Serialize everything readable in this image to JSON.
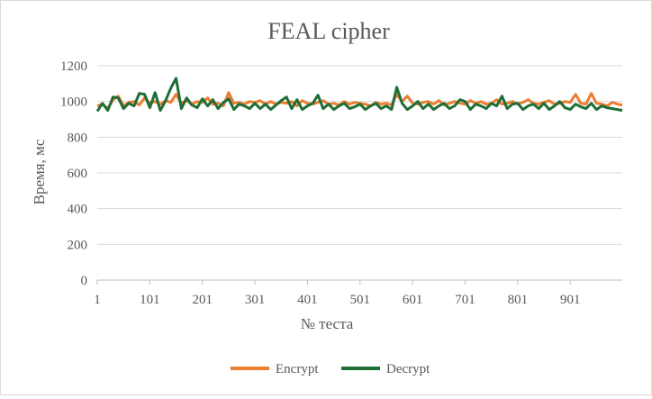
{
  "chart_data": {
    "type": "line",
    "title": "FEAL cipher",
    "xlabel": "№ теста",
    "ylabel": "Время, мс",
    "xlim": [
      1,
      1000
    ],
    "ylim": [
      0,
      1200
    ],
    "y_ticks": [
      0,
      200,
      400,
      600,
      800,
      1000,
      1200
    ],
    "x_ticks": [
      1,
      101,
      201,
      301,
      401,
      501,
      601,
      701,
      801,
      901
    ],
    "grid": "horizontal",
    "legend_position": "bottom",
    "series": [
      {
        "name": "Encrypt",
        "color": "#ED7D31",
        "x": [
          1,
          11,
          21,
          31,
          41,
          51,
          61,
          71,
          81,
          91,
          101,
          111,
          121,
          131,
          141,
          151,
          161,
          171,
          181,
          191,
          201,
          211,
          221,
          231,
          241,
          251,
          261,
          271,
          281,
          291,
          301,
          311,
          321,
          331,
          341,
          351,
          361,
          371,
          381,
          391,
          401,
          411,
          421,
          431,
          441,
          451,
          461,
          471,
          481,
          491,
          501,
          511,
          521,
          531,
          541,
          551,
          561,
          571,
          581,
          591,
          601,
          611,
          621,
          631,
          641,
          651,
          661,
          671,
          681,
          691,
          701,
          711,
          721,
          731,
          741,
          751,
          761,
          771,
          781,
          791,
          801,
          811,
          821,
          831,
          841,
          851,
          861,
          871,
          881,
          891,
          901,
          911,
          921,
          931,
          941,
          951,
          961,
          971,
          981,
          991,
          1000
        ],
        "y": [
          975,
          985,
          960,
          1010,
          1030,
          975,
          995,
          1000,
          980,
          1020,
          990,
          1000,
          985,
          1005,
          995,
          1040,
          990,
          1005,
          985,
          1000,
          995,
          1020,
          985,
          990,
          975,
          1050,
          990,
          995,
          985,
          1000,
          995,
          1005,
          985,
          1000,
          985,
          995,
          990,
          1000,
          975,
          1005,
          990,
          985,
          995,
          1005,
          985,
          990,
          980,
          1000,
          985,
          995,
          990,
          985,
          975,
          995,
          985,
          990,
          980,
          1040,
          1000,
          1030,
          990,
          985,
          995,
          1000,
          985,
          1005,
          980,
          990,
          1000,
          990,
          985,
          1005,
          990,
          1000,
          985,
          990,
          1010,
          985,
          990,
          1000,
          985,
          995,
          1010,
          990,
          985,
          995,
          1005,
          985,
          990,
          1000,
          995,
          1040,
          990,
          985,
          1045,
          990,
          985,
          975,
          995,
          985,
          980
        ]
      },
      {
        "name": "Decrypt",
        "color": "#1F6E35",
        "x": [
          1,
          11,
          21,
          31,
          41,
          51,
          61,
          71,
          81,
          91,
          101,
          111,
          121,
          131,
          141,
          151,
          161,
          171,
          181,
          191,
          201,
          211,
          221,
          231,
          241,
          251,
          261,
          271,
          281,
          291,
          301,
          311,
          321,
          331,
          341,
          351,
          361,
          371,
          381,
          391,
          401,
          411,
          421,
          431,
          441,
          451,
          461,
          471,
          481,
          491,
          501,
          511,
          521,
          531,
          541,
          551,
          561,
          571,
          581,
          591,
          601,
          611,
          621,
          631,
          641,
          651,
          661,
          671,
          681,
          691,
          701,
          711,
          721,
          731,
          741,
          751,
          761,
          771,
          781,
          791,
          801,
          811,
          821,
          831,
          841,
          851,
          861,
          871,
          881,
          891,
          901,
          911,
          921,
          931,
          941,
          951,
          961,
          971,
          981,
          991,
          1000
        ],
        "y": [
          945,
          990,
          950,
          1025,
          1020,
          960,
          990,
          975,
          1045,
          1040,
          965,
          1050,
          950,
          1005,
          1075,
          1130,
          960,
          1020,
          980,
          965,
          1015,
          975,
          1010,
          960,
          995,
          1015,
          955,
          985,
          975,
          960,
          990,
          960,
          985,
          955,
          980,
          1005,
          1025,
          960,
          1010,
          955,
          975,
          990,
          1035,
          960,
          985,
          955,
          975,
          990,
          960,
          970,
          985,
          955,
          975,
          990,
          960,
          975,
          955,
          1080,
          990,
          955,
          975,
          1000,
          960,
          985,
          955,
          975,
          990,
          960,
          975,
          1010,
          1000,
          955,
          985,
          975,
          960,
          990,
          975,
          1030,
          960,
          985,
          990,
          955,
          975,
          985,
          960,
          990,
          955,
          975,
          1000,
          965,
          955,
          985,
          970,
          960,
          990,
          955,
          975,
          965,
          960,
          955,
          950
        ]
      }
    ]
  }
}
